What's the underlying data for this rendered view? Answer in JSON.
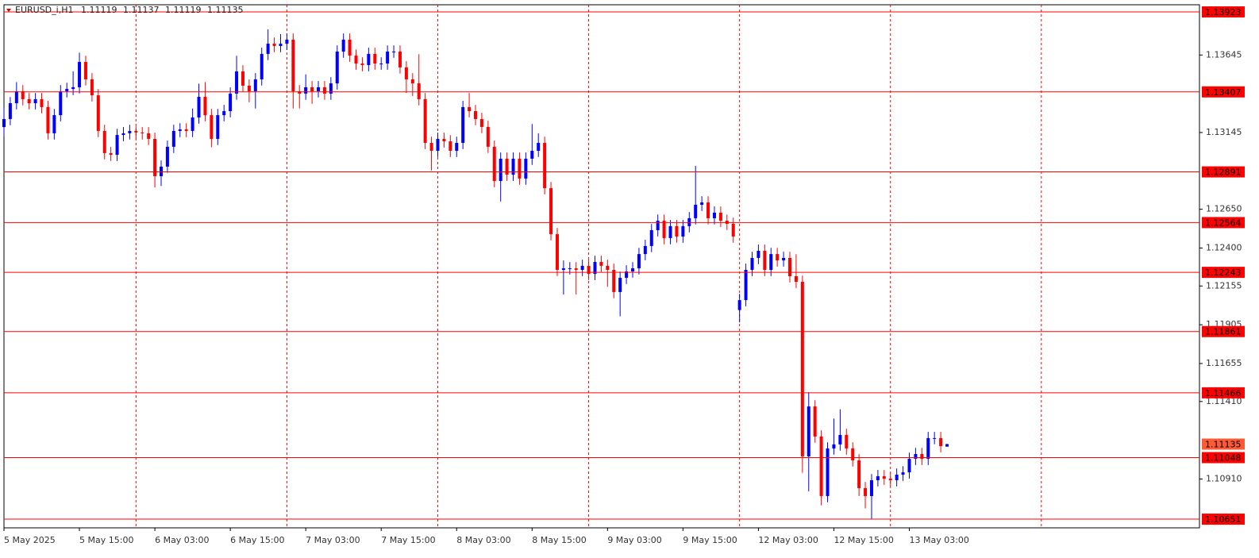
{
  "chart_data": {
    "type": "candlestick",
    "title": "EURUSD_i,H1",
    "up_color": "#0000ff",
    "down_color": "#ff0000",
    "level_color": "#ff0000",
    "grid_color": "#ff0000",
    "xlim": [
      0,
      190.15
    ],
    "ylim": [
      1.10595,
      1.13969
    ],
    "xticks": [
      {
        "value": 0,
        "label": "5 May 2025"
      },
      {
        "value": 12,
        "label": "5 May 15:00"
      },
      {
        "value": 24,
        "label": "6 May 03:00"
      },
      {
        "value": 36,
        "label": "6 May 15:00"
      },
      {
        "value": 48,
        "label": "7 May 03:00"
      },
      {
        "value": 60,
        "label": "7 May 15:00"
      },
      {
        "value": 72,
        "label": "8 May 03:00"
      },
      {
        "value": 84,
        "label": "8 May 15:00"
      },
      {
        "value": 96,
        "label": "9 May 03:00"
      },
      {
        "value": 108,
        "label": "9 May 15:00"
      },
      {
        "value": 120,
        "label": "12 May 03:00"
      },
      {
        "value": 132,
        "label": "12 May 15:00"
      },
      {
        "value": 144,
        "label": "13 May 03:00"
      }
    ],
    "xgrid": [
      21,
      45,
      69,
      93,
      117,
      141,
      165
    ],
    "yticks": [
      1.13645,
      1.13145,
      {
        "value": 1.1265,
        "label": "1.12650"
      },
      {
        "value": 1.124,
        "label": "1.12400"
      },
      1.12155,
      1.11905,
      1.11655,
      {
        "value": 1.1141,
        "label": "1.11410"
      },
      {
        "value": 1.1091,
        "label": "1.10910"
      }
    ],
    "levels": [
      1.13923,
      1.13407,
      1.12891,
      1.12564,
      1.12243,
      1.11861,
      1.11466,
      1.11048,
      1.10651
    ],
    "open": [
      1.1318,
      1.13232,
      1.13334,
      1.13411,
      1.1336,
      1.13334,
      1.1336,
      1.13309,
      1.1314,
      1.13257,
      1.13411,
      1.13426,
      1.13437,
      1.136,
      1.13488,
      1.13385,
      1.13155,
      1.13012,
      1.13001,
      1.13129,
      1.1314,
      1.13155,
      1.13145,
      1.1314,
      1.13104,
      1.12863,
      1.12925,
      1.13053,
      1.13155,
      1.13165,
      1.13155,
      1.13242,
      1.13375,
      1.13257,
      1.13104,
      1.13257,
      1.13283,
      1.13396,
      1.13539,
      1.13447,
      1.13411,
      1.13488,
      1.13652,
      1.13718,
      1.13703,
      1.13718,
      1.13744,
      1.13411,
      1.13396,
      1.13437,
      1.13411,
      1.13437,
      1.13396,
      1.13462,
      1.13667,
      1.13744,
      1.13641,
      1.1359,
      1.1358,
      1.13652,
      1.1359,
      1.1359,
      1.13667,
      1.13667,
      1.13565,
      1.13488,
      1.13462,
      1.1336,
      1.13078,
      1.13027,
      1.13104,
      1.13088,
      1.13027,
      1.13078,
      1.13309,
      1.13283,
      1.13232,
      1.13181,
      1.13053,
      1.12832,
      1.12976,
      1.12873,
      1.12976,
      1.12848,
      1.12976,
      1.13027,
      1.13078,
      1.12786,
      1.12489,
      1.12259,
      1.12269,
      1.12269,
      1.12259,
      1.12285,
      1.12233,
      1.1231,
      1.12285,
      1.12259,
      1.12116,
      1.12208,
      1.12249,
      1.12269,
      1.12361,
      1.12413,
      1.12515,
      1.12576,
      1.12464,
      1.12541,
      1.12474,
      1.12541,
      1.12592,
      1.12679,
      1.12694,
      1.12592,
      1.12628,
      1.12576,
      1.12556,
      1.12,
      1.12064,
      1.12259,
      1.12336,
      1.12382,
      1.12259,
      1.12361,
      1.1232,
      1.12336,
      1.12218,
      1.12182,
      1.11056,
      1.11378,
      1.11184,
      1.108,
      1.11107,
      1.11133,
      1.11194,
      1.11107,
      1.1103,
      1.10851,
      1.108,
      1.10902,
      1.10928,
      1.10912,
      1.10902,
      1.10938,
      1.10953,
      1.1104,
      1.11071,
      1.1104,
      1.11174,
      1.11174,
      1.11119
    ],
    "high": [
      1.133,
      1.13374,
      1.1347,
      1.13451,
      1.134,
      1.134,
      1.134,
      1.13349,
      1.13297,
      1.13451,
      1.13466,
      1.1354,
      1.1366,
      1.1364,
      1.13528,
      1.13425,
      1.13195,
      1.13052,
      1.13169,
      1.1318,
      1.13195,
      1.13185,
      1.1318,
      1.1318,
      1.13144,
      1.12965,
      1.13093,
      1.13195,
      1.13205,
      1.13205,
      1.133,
      1.1346,
      1.1347,
      1.13297,
      1.13297,
      1.13323,
      1.13436,
      1.1364,
      1.13579,
      1.13487,
      1.13528,
      1.13692,
      1.1381,
      1.13758,
      1.1378,
      1.13784,
      1.13784,
      1.13451,
      1.1352,
      1.13477,
      1.13477,
      1.13477,
      1.13502,
      1.13707,
      1.13784,
      1.13784,
      1.13681,
      1.1363,
      1.13692,
      1.13692,
      1.1363,
      1.13707,
      1.13707,
      1.13707,
      1.13605,
      1.13528,
      1.1365,
      1.134,
      1.13118,
      1.13144,
      1.13144,
      1.13128,
      1.13118,
      1.13349,
      1.134,
      1.13323,
      1.13272,
      1.13221,
      1.13093,
      1.13016,
      1.13016,
      1.13016,
      1.13016,
      1.13016,
      1.132,
      1.1314,
      1.13118,
      1.12826,
      1.12529,
      1.1232,
      1.12309,
      1.12309,
      1.12325,
      1.12325,
      1.1235,
      1.1235,
      1.12325,
      1.12299,
      1.12248,
      1.12289,
      1.12309,
      1.12401,
      1.12453,
      1.12555,
      1.12616,
      1.12616,
      1.12581,
      1.12581,
      1.12581,
      1.12632,
      1.1293,
      1.12734,
      1.12734,
      1.12668,
      1.12668,
      1.12616,
      1.12596,
      1.12104,
      1.12299,
      1.12376,
      1.12422,
      1.12422,
      1.12401,
      1.12401,
      1.12376,
      1.12376,
      1.1236,
      1.12222,
      1.1147,
      1.11418,
      1.11224,
      1.11147,
      1.113,
      1.1136,
      1.11234,
      1.11147,
      1.1107,
      1.10891,
      1.10942,
      1.10968,
      1.10968,
      1.10952,
      1.10978,
      1.10993,
      1.1108,
      1.11111,
      1.11111,
      1.11214,
      1.11214,
      1.11214,
      1.11137
    ],
    "low": [
      1.1312,
      1.13192,
      1.13294,
      1.1332,
      1.13294,
      1.13294,
      1.13269,
      1.131,
      1.131,
      1.13217,
      1.13371,
      1.13386,
      1.13397,
      1.13448,
      1.13345,
      1.13115,
      1.12972,
      1.12961,
      1.12961,
      1.13089,
      1.131,
      1.13105,
      1.131,
      1.13064,
      1.1279,
      1.128,
      1.12885,
      1.13013,
      1.13115,
      1.13115,
      1.13115,
      1.13202,
      1.13217,
      1.1305,
      1.13064,
      1.13217,
      1.13243,
      1.13356,
      1.13407,
      1.1334,
      1.133,
      1.13448,
      1.13612,
      1.13663,
      1.13663,
      1.13678,
      1.133,
      1.133,
      1.13356,
      1.1333,
      1.13371,
      1.13356,
      1.13356,
      1.13422,
      1.13627,
      1.13601,
      1.1355,
      1.1354,
      1.1354,
      1.1355,
      1.1355,
      1.1355,
      1.13627,
      1.13525,
      1.134,
      1.1338,
      1.1332,
      1.13038,
      1.129,
      1.12987,
      1.13048,
      1.12987,
      1.12987,
      1.13038,
      1.13243,
      1.13192,
      1.13141,
      1.13013,
      1.12792,
      1.127,
      1.12833,
      1.12833,
      1.12808,
      1.12808,
      1.12936,
      1.12987,
      1.12746,
      1.12449,
      1.12219,
      1.121,
      1.12229,
      1.121,
      1.12219,
      1.12193,
      1.12193,
      1.12245,
      1.1215,
      1.12076,
      1.1196,
      1.12168,
      1.12209,
      1.12229,
      1.12321,
      1.12373,
      1.12475,
      1.12424,
      1.12424,
      1.12434,
      1.12434,
      1.12501,
      1.12552,
      1.12639,
      1.12552,
      1.12552,
      1.12536,
      1.12516,
      1.12434,
      1.1192,
      1.12024,
      1.12219,
      1.12296,
      1.12219,
      1.12219,
      1.1228,
      1.1228,
      1.12178,
      1.12142,
      1.1095,
      1.1083,
      1.11144,
      1.1074,
      1.1076,
      1.11067,
      1.11093,
      1.11067,
      1.1099,
      1.108,
      1.1072,
      1.10651,
      1.10862,
      1.10872,
      1.10862,
      1.10862,
      1.10898,
      1.10913,
      1.11,
      1.11,
      1.11,
      1.11134,
      1.11082,
      1.11119
    ],
    "close": [
      1.13232,
      1.13334,
      1.13411,
      1.1336,
      1.13334,
      1.1336,
      1.13309,
      1.1314,
      1.13257,
      1.13411,
      1.13426,
      1.13437,
      1.136,
      1.13488,
      1.13385,
      1.13155,
      1.13012,
      1.13001,
      1.13129,
      1.1314,
      1.13155,
      1.13145,
      1.1314,
      1.13104,
      1.12863,
      1.12925,
      1.13053,
      1.13155,
      1.13165,
      1.13155,
      1.13242,
      1.13375,
      1.13257,
      1.13104,
      1.13257,
      1.13283,
      1.13396,
      1.13539,
      1.13447,
      1.13411,
      1.13488,
      1.13652,
      1.13718,
      1.13703,
      1.13718,
      1.13744,
      1.13411,
      1.13396,
      1.13437,
      1.13411,
      1.13437,
      1.13396,
      1.13462,
      1.13667,
      1.13744,
      1.13641,
      1.1359,
      1.1358,
      1.13652,
      1.1359,
      1.1359,
      1.13667,
      1.13667,
      1.13565,
      1.13488,
      1.13462,
      1.1336,
      1.13078,
      1.13027,
      1.13104,
      1.13088,
      1.13027,
      1.13078,
      1.13309,
      1.13283,
      1.13232,
      1.13181,
      1.13053,
      1.12832,
      1.12976,
      1.12873,
      1.12976,
      1.12848,
      1.12976,
      1.13027,
      1.13078,
      1.12786,
      1.12489,
      1.12259,
      1.12269,
      1.12269,
      1.12259,
      1.12285,
      1.12233,
      1.1231,
      1.12285,
      1.12259,
      1.12116,
      1.12208,
      1.12249,
      1.12269,
      1.12361,
      1.12413,
      1.12515,
      1.12576,
      1.12464,
      1.12541,
      1.12474,
      1.12541,
      1.12592,
      1.12679,
      1.12694,
      1.12592,
      1.12628,
      1.12576,
      1.12556,
      1.12474,
      1.12064,
      1.12259,
      1.12336,
      1.12382,
      1.12259,
      1.12361,
      1.1232,
      1.12336,
      1.12218,
      1.12182,
      1.11056,
      1.11378,
      1.11184,
      1.108,
      1.11107,
      1.11133,
      1.11194,
      1.11107,
      1.1103,
      1.10851,
      1.108,
      1.10902,
      1.10928,
      1.10912,
      1.10902,
      1.10938,
      1.10953,
      1.1104,
      1.11071,
      1.1104,
      1.11174,
      1.11174,
      1.11122,
      1.11135
    ]
  }
}
